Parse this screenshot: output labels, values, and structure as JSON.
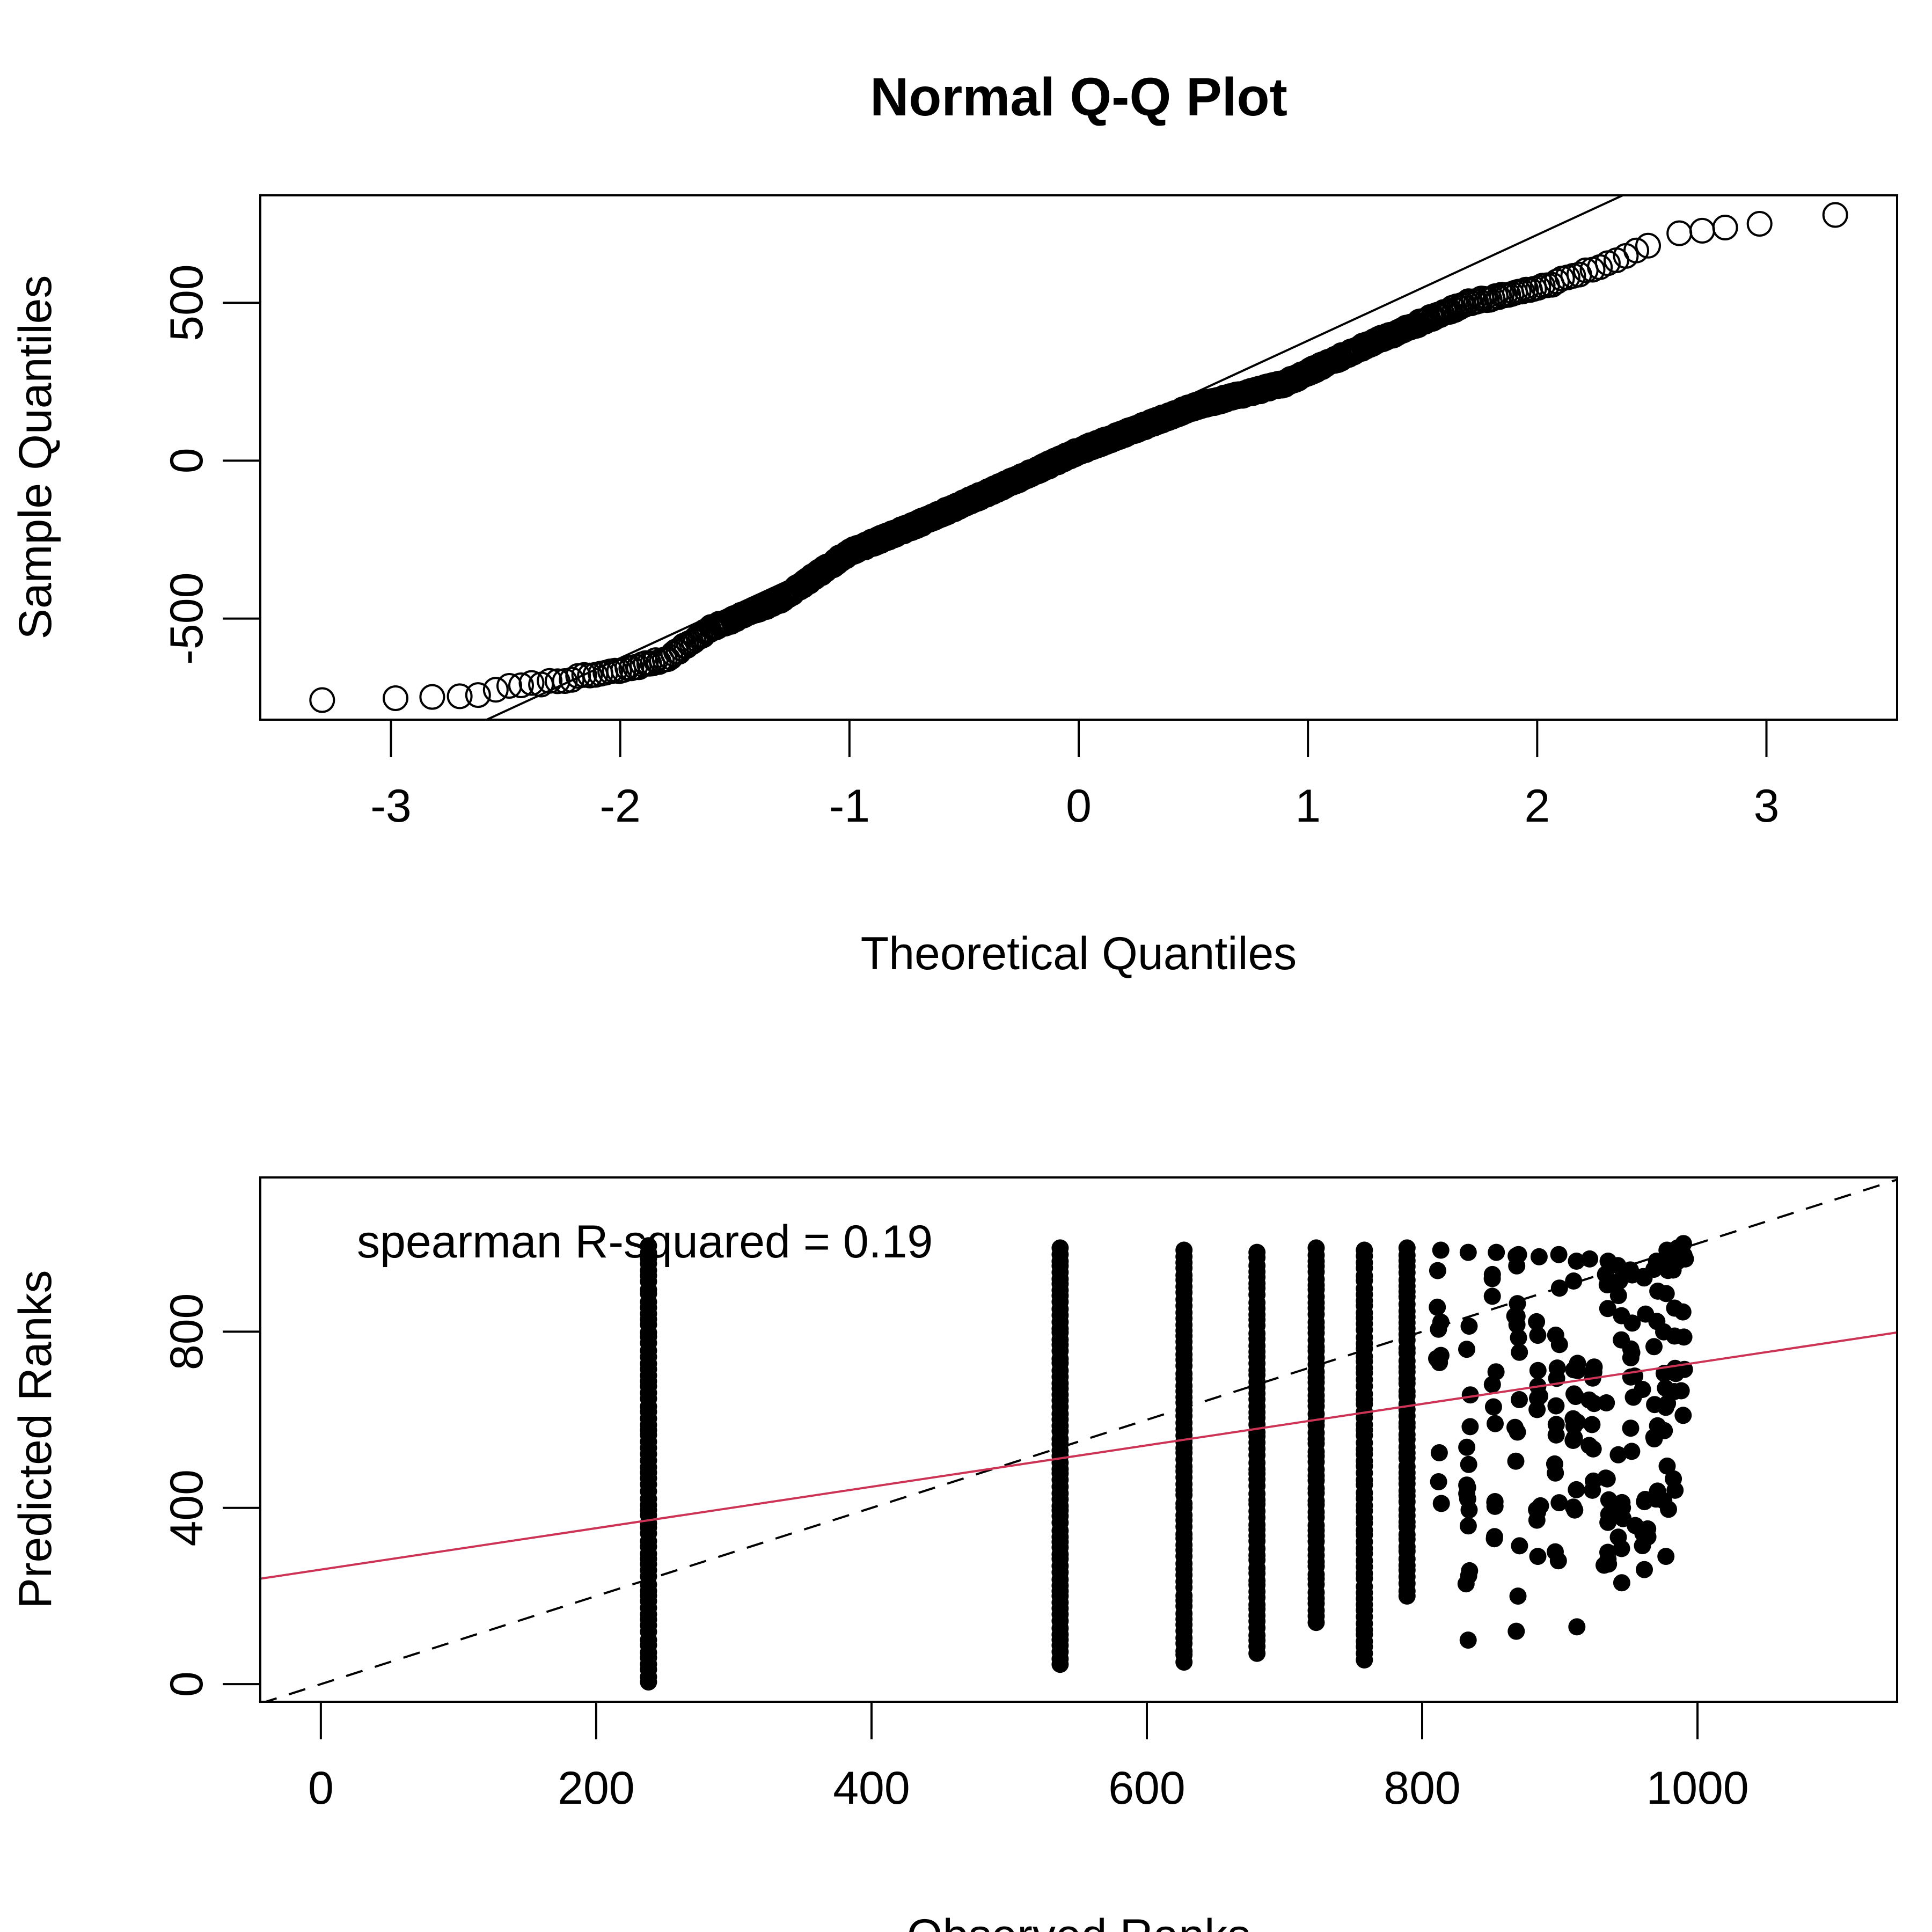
{
  "chart_data": [
    {
      "type": "scatter",
      "title": "Normal Q-Q Plot",
      "xlabel": "Theoretical Quantiles",
      "ylabel": "Sample Quantiles",
      "xlim": [
        -3.57,
        3.57
      ],
      "ylim": [
        -820,
        840
      ],
      "xticks": [
        -3,
        -2,
        -1,
        0,
        1,
        2,
        3
      ],
      "xtick_labels": [
        "-3",
        "-2",
        "-1",
        "0",
        "1",
        "2",
        "3"
      ],
      "yticks": [
        -500,
        0,
        500
      ],
      "ytick_labels": [
        "-500",
        "0",
        "500"
      ],
      "marker": "open-circle",
      "n_points": 1000,
      "quantile_curve": [
        [
          -2.6,
          -728
        ],
        [
          -2.3,
          -700
        ],
        [
          -2.0,
          -665
        ],
        [
          -1.8,
          -628
        ],
        [
          -1.6,
          -530
        ],
        [
          -1.3,
          -440
        ],
        [
          -1.0,
          -290
        ],
        [
          -0.7,
          -200
        ],
        [
          -0.3,
          -70
        ],
        [
          0.0,
          30
        ],
        [
          0.5,
          170
        ],
        [
          0.9,
          245
        ],
        [
          1.0,
          280
        ],
        [
          1.3,
          380
        ],
        [
          1.7,
          500
        ],
        [
          2.0,
          545
        ],
        [
          2.2,
          595
        ],
        [
          2.35,
          640
        ],
        [
          2.5,
          680
        ]
      ],
      "tail_points": [
        [
          -3.3,
          -758
        ],
        [
          -2.98,
          -752
        ],
        [
          -2.82,
          -748
        ],
        [
          -2.7,
          -746
        ],
        [
          -2.62,
          -742
        ],
        [
          2.62,
          720
        ],
        [
          2.72,
          728
        ],
        [
          2.82,
          738
        ],
        [
          2.97,
          750
        ],
        [
          3.3,
          778
        ]
      ],
      "reference_line": {
        "slope": 335,
        "intercept": 45,
        "color": "#000000",
        "style": "solid"
      },
      "grid": false,
      "legend": "none"
    },
    {
      "type": "scatter",
      "title": "",
      "xlabel": "Observed Ranks",
      "ylabel": "Predicted Ranks",
      "xlim": [
        -44,
        1145
      ],
      "ylim": [
        -40,
        1150
      ],
      "xticks": [
        0,
        200,
        400,
        600,
        800,
        1000
      ],
      "xtick_labels": [
        "0",
        "200",
        "400",
        "600",
        "800",
        "1000"
      ],
      "yticks": [
        0,
        400,
        800
      ],
      "ytick_labels": [
        "0",
        "400",
        "800"
      ],
      "marker": "filled-circle",
      "annotation": "spearman R-squared =  0.19",
      "rank_groups": [
        {
          "x": 238,
          "y_min": 5,
          "y_max": 995
        },
        {
          "x": 537,
          "y_min": 45,
          "y_max": 990
        },
        {
          "x": 627,
          "y_min": 50,
          "y_max": 985
        },
        {
          "x": 680,
          "y_min": 70,
          "y_max": 980
        },
        {
          "x": 723,
          "y_min": 140,
          "y_max": 990
        },
        {
          "x": 758,
          "y_min": 55,
          "y_max": 985
        },
        {
          "x": 789,
          "y_min": 200,
          "y_max": 990
        },
        {
          "x": 812,
          "y_min": 410,
          "y_max": 985
        },
        {
          "x": 833,
          "y_min": 100,
          "y_max": 980
        },
        {
          "x": 852,
          "y_min": 330,
          "y_max": 980
        },
        {
          "x": 869,
          "y_min": 120,
          "y_max": 975
        },
        {
          "x": 884,
          "y_min": 290,
          "y_max": 970
        },
        {
          "x": 898,
          "y_min": 280,
          "y_max": 975
        },
        {
          "x": 911,
          "y_min": 130,
          "y_max": 960
        },
        {
          "x": 923,
          "y_min": 440,
          "y_max": 965
        },
        {
          "x": 934,
          "y_min": 270,
          "y_max": 960
        },
        {
          "x": 944,
          "y_min": 230,
          "y_max": 950
        },
        {
          "x": 953,
          "y_min": 360,
          "y_max": 940
        },
        {
          "x": 962,
          "y_min": 260,
          "y_max": 925
        },
        {
          "x": 970,
          "y_min": 420,
          "y_max": 960
        },
        {
          "x": 977,
          "y_min": 290,
          "y_max": 985
        },
        {
          "x": 984,
          "y_min": 440,
          "y_max": 990
        },
        {
          "x": 990,
          "y_min": 610,
          "y_max": 1000
        }
      ],
      "reference_lines": [
        {
          "name": "identity",
          "slope": 1,
          "intercept": 0,
          "color": "#000000",
          "style": "dashed"
        },
        {
          "name": "fit",
          "slope": 0.47,
          "intercept": 260,
          "color": "#CD3355",
          "style": "solid"
        }
      ],
      "grid": false,
      "legend": "none"
    }
  ]
}
